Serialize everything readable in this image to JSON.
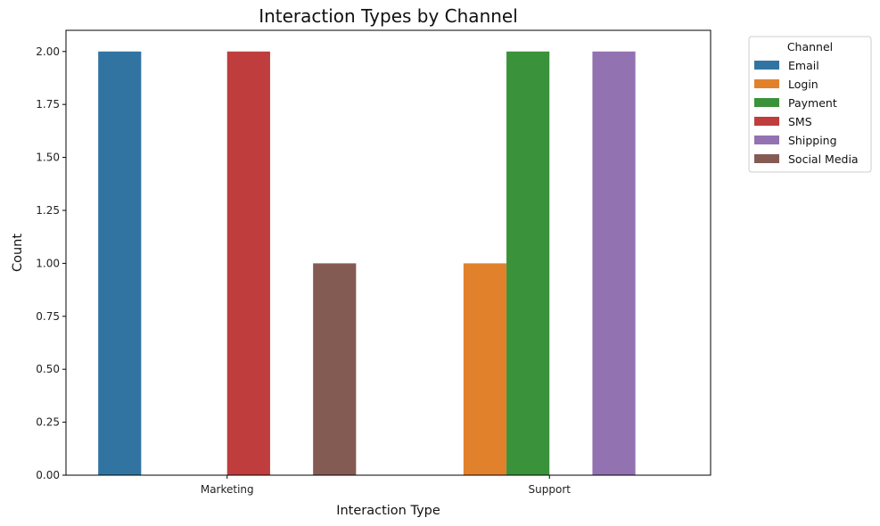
{
  "chart_data": {
    "type": "bar",
    "title": "Interaction Types by Channel",
    "xlabel": "Interaction Type",
    "ylabel": "Count",
    "ylim": [
      0,
      2.1
    ],
    "yticks": [
      "0.00",
      "0.25",
      "0.50",
      "0.75",
      "1.00",
      "1.25",
      "1.50",
      "1.75",
      "2.00"
    ],
    "categories": [
      "Marketing",
      "Support"
    ],
    "series": [
      {
        "name": "Email",
        "color": "#3274a1",
        "values": [
          2,
          0
        ]
      },
      {
        "name": "Login",
        "color": "#e1812c",
        "values": [
          0,
          1
        ]
      },
      {
        "name": "Payment",
        "color": "#3a923a",
        "values": [
          0,
          2
        ]
      },
      {
        "name": "SMS",
        "color": "#c03d3e",
        "values": [
          2,
          0
        ]
      },
      {
        "name": "Shipping",
        "color": "#9372b2",
        "values": [
          0,
          2
        ]
      },
      {
        "name": "Social Media",
        "color": "#845b53",
        "values": [
          1,
          0
        ]
      }
    ],
    "legend": {
      "title": "Channel",
      "placement": "outside-top-right"
    },
    "grid": false
  }
}
